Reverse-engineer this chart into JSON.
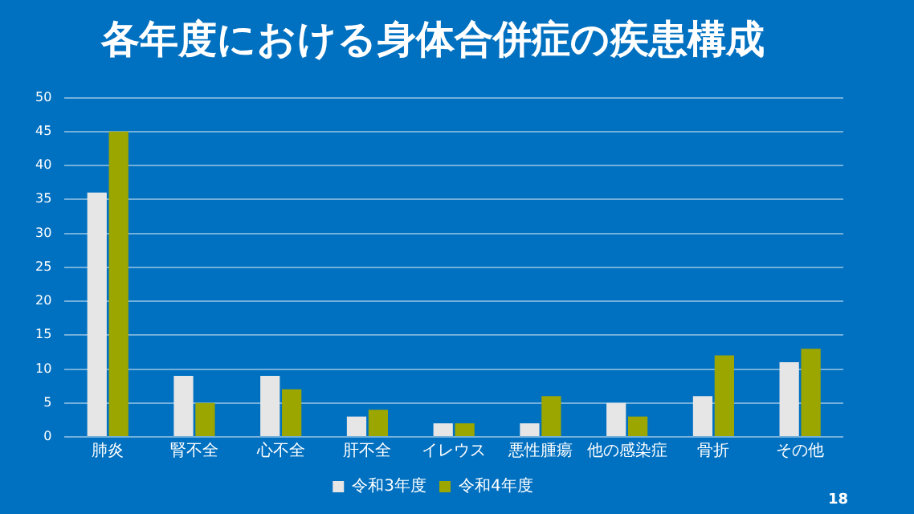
{
  "chart_data": {
    "type": "bar",
    "title": "各年度における身体合併症の疾患構成",
    "categories": [
      "肺炎",
      "腎不全",
      "心不全",
      "肝不全",
      "イレウス",
      "悪性腫瘍",
      "他の感染症",
      "骨折",
      "その他"
    ],
    "series": [
      {
        "name": "令和3年度",
        "color": "#e6e6e6",
        "values": [
          36,
          9,
          9,
          3,
          2,
          2,
          5,
          6,
          11
        ]
      },
      {
        "name": "令和4年度",
        "color": "#9ca600",
        "values": [
          45,
          5,
          7,
          4,
          2,
          6,
          3,
          12,
          13
        ]
      }
    ],
    "ylim": [
      0,
      50
    ],
    "yticks": [
      0,
      5,
      10,
      15,
      20,
      25,
      30,
      35,
      40,
      45,
      50
    ],
    "grid": "y",
    "legend": "bottom",
    "annotations": [
      "18"
    ]
  }
}
